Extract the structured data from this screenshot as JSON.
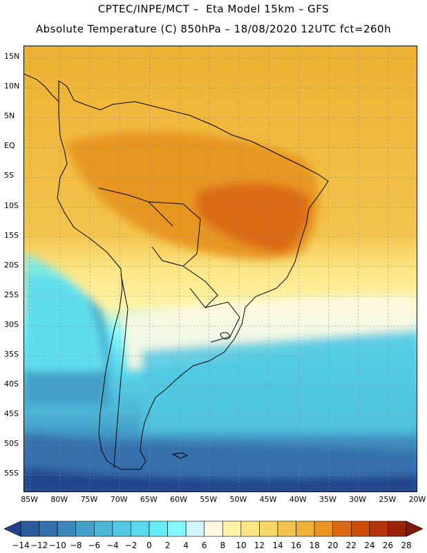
{
  "header": {
    "line1": "CPTEC/INPE/MCT –  Eta Model 15km – GFS",
    "line2": "Absolute Temperature (C) 850hPa – 18/08/2020 12UTC fct=260h"
  },
  "map": {
    "region": "South America",
    "variable": "Absolute Temperature",
    "units": "C",
    "level": "850hPa",
    "lat_range": [
      -58,
      17
    ],
    "lon_range": [
      -86,
      -20
    ],
    "lat_labels": [
      "15N",
      "10N",
      "5N",
      "EQ",
      "5S",
      "10S",
      "15S",
      "20S",
      "25S",
      "30S",
      "35S",
      "40S",
      "45S",
      "50S",
      "55S"
    ],
    "lat_values": [
      15,
      10,
      5,
      0,
      -5,
      -10,
      -15,
      -20,
      -25,
      -30,
      -35,
      -40,
      -45,
      -50,
      -55
    ],
    "lon_labels": [
      "85W",
      "80W",
      "75W",
      "70W",
      "65W",
      "60W",
      "55W",
      "50W",
      "45W",
      "40W",
      "35W",
      "30W",
      "25W",
      "20W"
    ],
    "lon_values": [
      -85,
      -80,
      -75,
      -70,
      -65,
      -60,
      -55,
      -50,
      -45,
      -40,
      -35,
      -30,
      -25,
      -20
    ]
  },
  "colorbar": {
    "levels": [
      -14,
      -12,
      -10,
      -8,
      -6,
      -4,
      -2,
      0,
      2,
      4,
      6,
      8,
      10,
      12,
      14,
      16,
      18,
      20,
      22,
      24,
      26,
      28
    ],
    "colors": [
      "#22448c",
      "#2b5a9e",
      "#3470ad",
      "#3d86ba",
      "#45a0c9",
      "#4cb6d6",
      "#52c8e2",
      "#5ad8ec",
      "#66ecf6",
      "#7ff9ff",
      "#d0f5ff",
      "#fff8e2",
      "#fff3a6",
      "#fce585",
      "#f8d668",
      "#f3c44d",
      "#eeb133",
      "#e89620",
      "#db6b12",
      "#cd4c0c",
      "#b53409",
      "#9a2409",
      "#7a1a0a"
    ],
    "labels": [
      "−14",
      "−12",
      "−10",
      "−8",
      "−6",
      "−4",
      "−2",
      "0",
      "2",
      "4",
      "6",
      "8",
      "10",
      "12",
      "14",
      "16",
      "18",
      "20",
      "22",
      "24",
      "26",
      "28"
    ]
  }
}
